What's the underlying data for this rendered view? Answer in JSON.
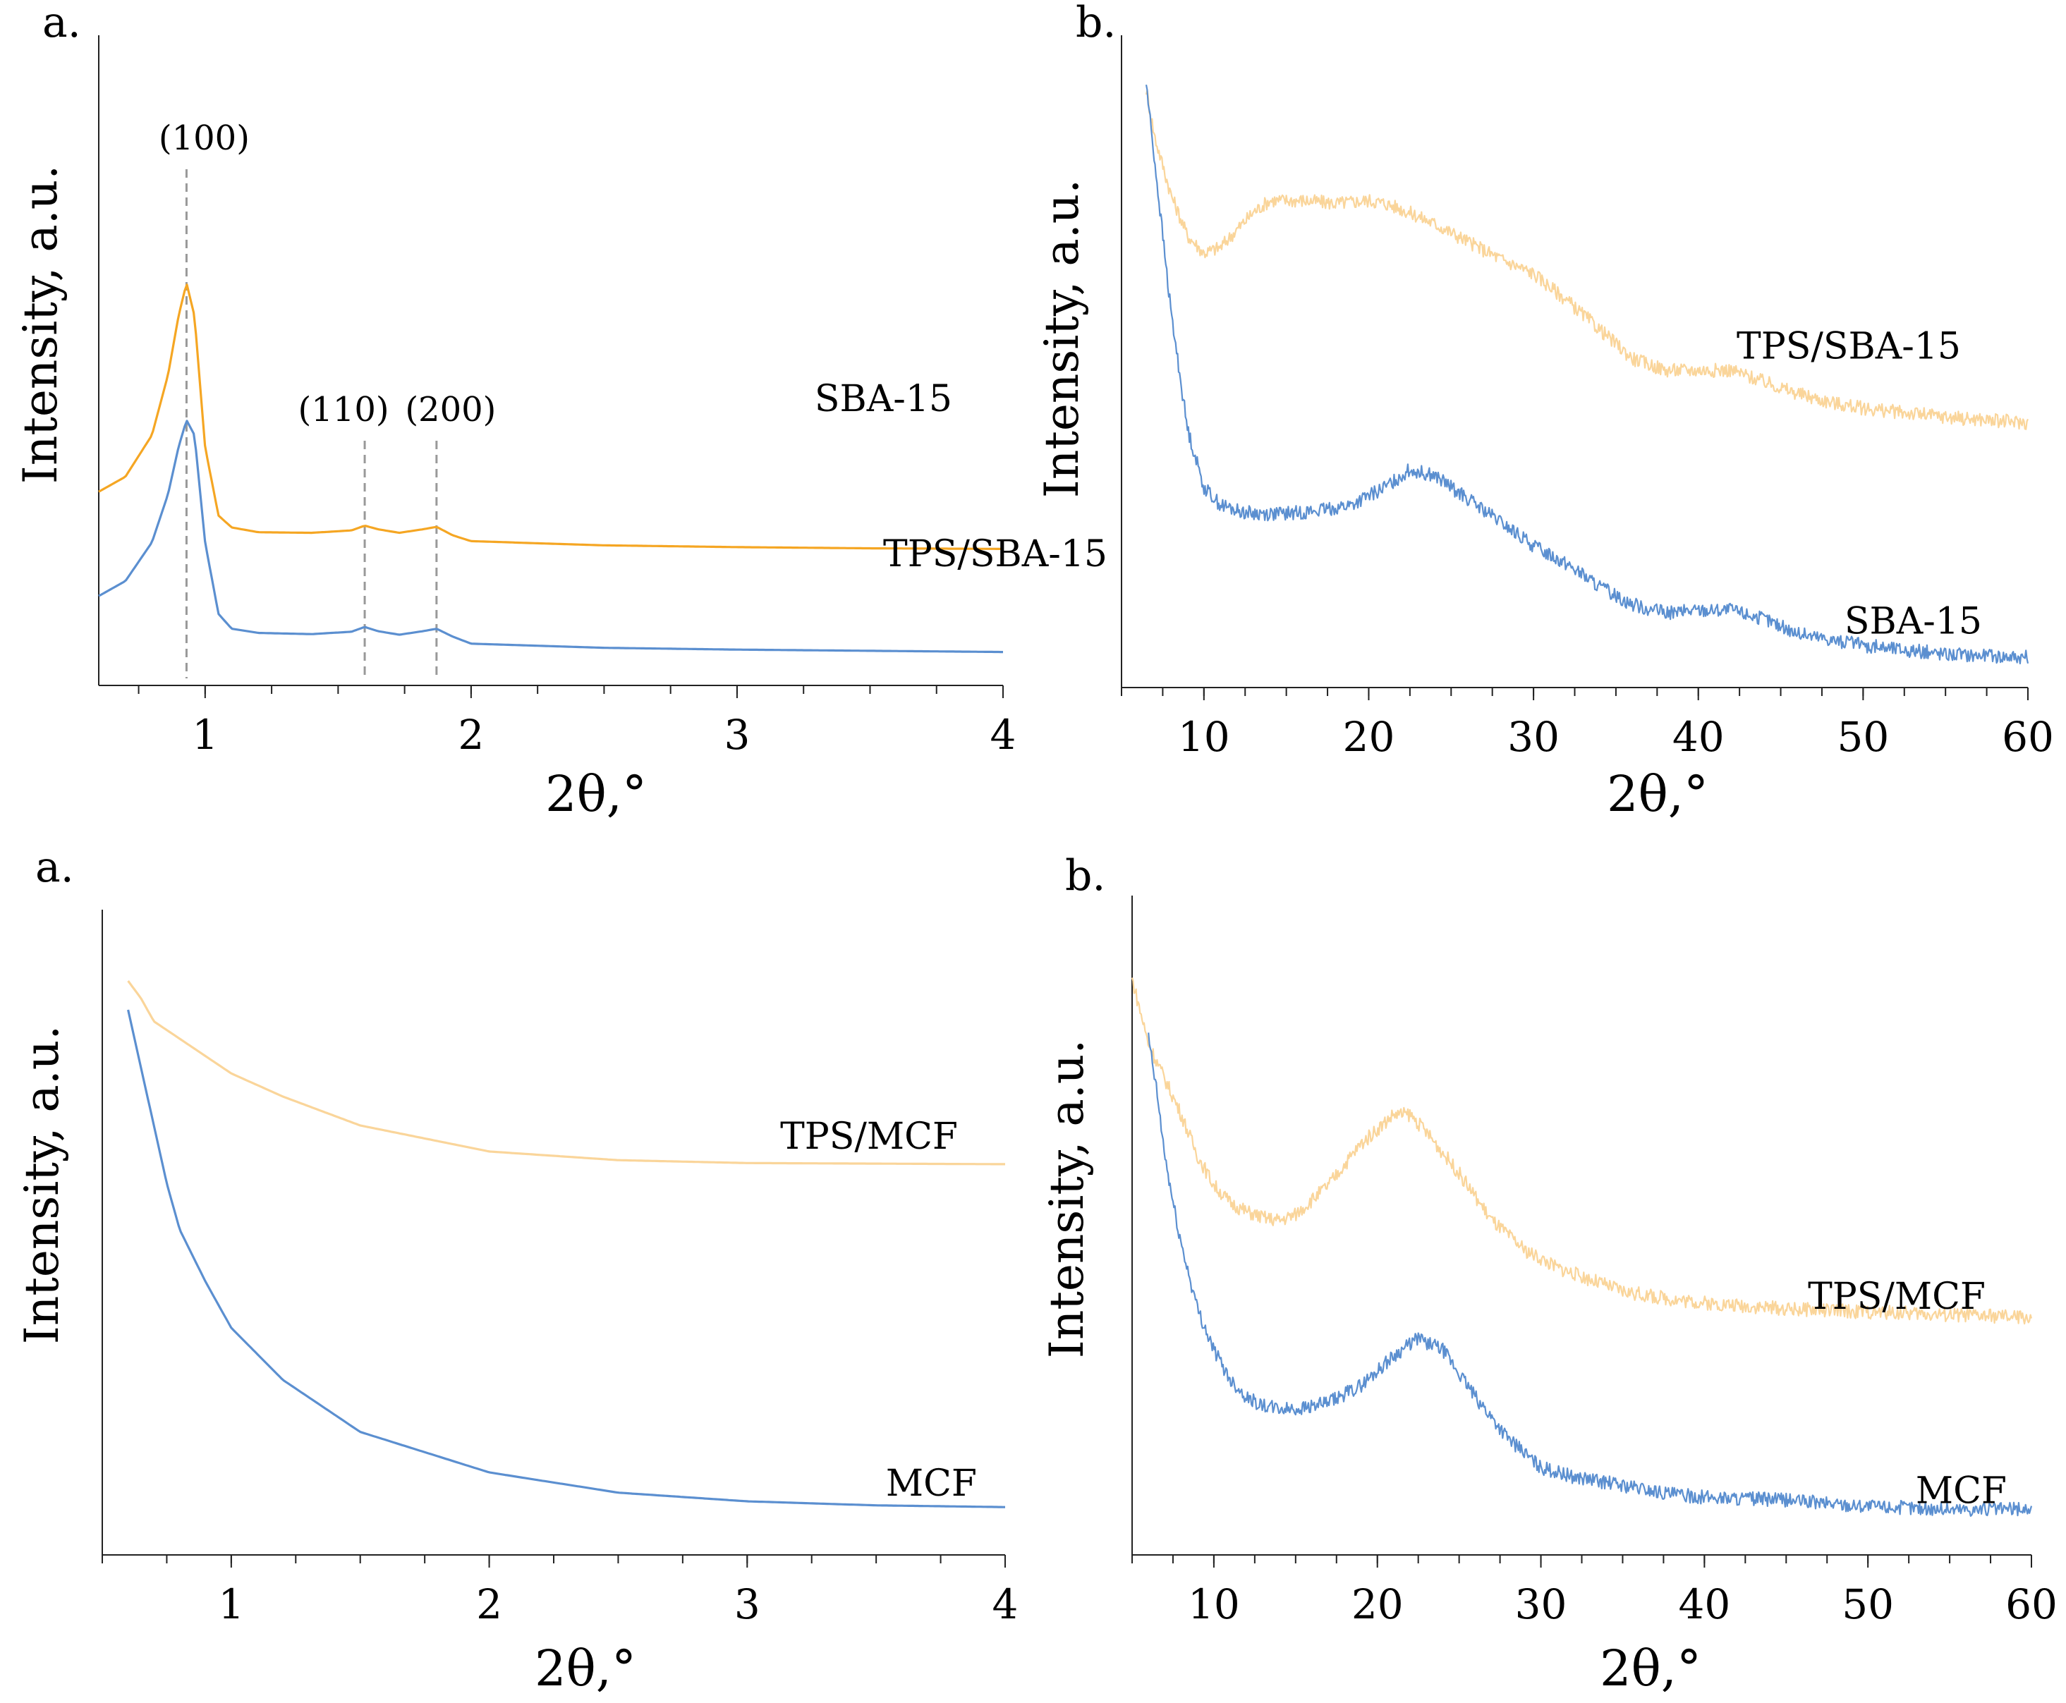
{
  "colors": {
    "sba_small_angle": "#F5A623",
    "tps_wide": "#FAD59A",
    "blue": "#5B8FD0",
    "axis": "#222222",
    "guide": "#999999"
  },
  "chart_data": [
    {
      "type": "line",
      "panel_letter": "a.",
      "xlabel": "2θ,°",
      "ylabel": "Intensity, a.u.",
      "xlim": [
        0.6,
        4
      ],
      "xticks": [
        "1",
        "2",
        "3",
        "4"
      ],
      "peak_labels": [
        {
          "text": "(100)",
          "x": 0.93
        },
        {
          "text": "(110)",
          "x": 1.6
        },
        {
          "text": "(200)",
          "x": 1.87
        }
      ],
      "series": [
        {
          "name": "TPS/SBA-15",
          "color": "#F5A623",
          "x": [
            0.6,
            0.7,
            0.8,
            0.86,
            0.9,
            0.93,
            0.96,
            1.0,
            1.05,
            1.1,
            1.2,
            1.4,
            1.55,
            1.6,
            1.65,
            1.73,
            1.82,
            1.87,
            1.93,
            2.0,
            2.5,
            3.0,
            3.5,
            4.0
          ],
          "y": [
            0.305,
            0.33,
            0.4,
            0.5,
            0.6,
            0.655,
            0.6,
            0.38,
            0.265,
            0.245,
            0.237,
            0.236,
            0.24,
            0.248,
            0.242,
            0.236,
            0.242,
            0.246,
            0.232,
            0.222,
            0.215,
            0.212,
            0.21,
            0.209
          ]
        },
        {
          "name": "SBA-15",
          "color": "#5B8FD0",
          "x": [
            0.6,
            0.7,
            0.8,
            0.86,
            0.9,
            0.93,
            0.96,
            1.0,
            1.05,
            1.1,
            1.2,
            1.4,
            1.55,
            1.6,
            1.65,
            1.73,
            1.82,
            1.87,
            1.93,
            2.0,
            2.5,
            3.0,
            3.5,
            4.0
          ],
          "y": [
            0.13,
            0.155,
            0.22,
            0.3,
            0.38,
            0.425,
            0.4,
            0.22,
            0.1,
            0.075,
            0.068,
            0.066,
            0.07,
            0.078,
            0.071,
            0.065,
            0.071,
            0.075,
            0.062,
            0.05,
            0.043,
            0.04,
            0.038,
            0.036
          ]
        }
      ]
    },
    {
      "type": "line",
      "panel_letter": "b.",
      "xlabel": "2θ,°",
      "ylabel": "Intensity, a.u.",
      "xlim": [
        5,
        60
      ],
      "xticks": [
        "10",
        "20",
        "30",
        "40",
        "50",
        "60"
      ],
      "series": [
        {
          "name": "TPS/SBA-15",
          "color": "#FAD59A",
          "x": [
            6.5,
            7,
            8,
            9,
            10,
            11,
            12,
            13,
            14,
            16,
            18,
            20,
            21,
            22,
            24,
            26,
            28,
            30,
            32,
            34,
            36,
            38,
            40,
            42,
            44,
            46,
            48,
            50,
            55,
            60
          ],
          "y": [
            0.98,
            0.9,
            0.8,
            0.73,
            0.7,
            0.71,
            0.74,
            0.77,
            0.79,
            0.79,
            0.785,
            0.79,
            0.785,
            0.775,
            0.75,
            0.72,
            0.69,
            0.665,
            0.62,
            0.57,
            0.52,
            0.5,
            0.5,
            0.5,
            0.48,
            0.46,
            0.445,
            0.435,
            0.42,
            0.41
          ]
        },
        {
          "name": "SBA-15",
          "color": "#5B8FD0",
          "x": [
            6.5,
            7,
            7.5,
            8,
            9,
            10,
            11,
            12,
            13,
            15,
            17,
            19,
            21,
            22.5,
            24,
            26,
            28,
            30,
            32,
            34,
            36,
            38,
            40,
            42,
            44,
            46,
            48,
            50,
            55,
            60
          ],
          "y": [
            0.99,
            0.86,
            0.73,
            0.6,
            0.4,
            0.3,
            0.27,
            0.26,
            0.255,
            0.255,
            0.26,
            0.27,
            0.3,
            0.33,
            0.32,
            0.28,
            0.24,
            0.2,
            0.17,
            0.13,
            0.1,
            0.085,
            0.09,
            0.09,
            0.075,
            0.05,
            0.04,
            0.03,
            0.015,
            0.01
          ]
        }
      ]
    },
    {
      "type": "line",
      "panel_letter": "a.",
      "xlabel": "2θ,°",
      "ylabel": "Intensity, a.u.",
      "xlim": [
        0.5,
        4
      ],
      "xticks": [
        "1",
        "2",
        "3",
        "4"
      ],
      "series": [
        {
          "name": "TPS/MCF",
          "color": "#FAD59A",
          "x": [
            0.6,
            0.65,
            0.7,
            0.8,
            0.9,
            1.0,
            1.2,
            1.5,
            2.0,
            2.5,
            3.0,
            3.5,
            4.0
          ],
          "y": [
            0.95,
            0.92,
            0.88,
            0.85,
            0.82,
            0.79,
            0.75,
            0.7,
            0.655,
            0.64,
            0.635,
            0.634,
            0.633
          ]
        },
        {
          "name": "MCF",
          "color": "#5B8FD0",
          "x": [
            0.6,
            0.65,
            0.7,
            0.75,
            0.8,
            0.9,
            1.0,
            1.2,
            1.5,
            2.0,
            2.5,
            3.0,
            3.5,
            4.0
          ],
          "y": [
            0.9,
            0.8,
            0.7,
            0.6,
            0.52,
            0.43,
            0.35,
            0.26,
            0.17,
            0.1,
            0.065,
            0.05,
            0.043,
            0.04
          ]
        }
      ]
    },
    {
      "type": "line",
      "panel_letter": "b.",
      "xlabel": "2θ,°",
      "ylabel": "Intensity, a.u.",
      "xlim": [
        5,
        60
      ],
      "xticks": [
        "10",
        "20",
        "30",
        "40",
        "50",
        "60"
      ],
      "series": [
        {
          "name": "TPS/MCF",
          "color": "#FAD59A",
          "x": [
            5,
            6,
            7,
            8,
            9,
            10,
            11,
            12,
            13,
            14,
            15,
            17,
            19,
            21,
            22,
            23,
            25,
            27,
            29,
            31,
            33,
            35,
            37,
            40,
            45,
            50,
            55,
            60
          ],
          "y": [
            0.93,
            0.82,
            0.76,
            0.7,
            0.63,
            0.58,
            0.55,
            0.535,
            0.525,
            0.52,
            0.53,
            0.58,
            0.65,
            0.7,
            0.7,
            0.67,
            0.6,
            0.52,
            0.47,
            0.44,
            0.42,
            0.4,
            0.39,
            0.38,
            0.37,
            0.365,
            0.36,
            0.355
          ]
        },
        {
          "name": "MCF",
          "color": "#5B8FD0",
          "x": [
            6,
            6.5,
            7,
            7.5,
            8,
            9,
            10,
            11,
            12,
            13,
            14,
            15,
            17,
            19,
            21,
            22.5,
            24,
            26,
            28,
            30,
            32,
            35,
            38,
            40,
            45,
            50,
            55,
            60
          ],
          "y": [
            0.83,
            0.74,
            0.63,
            0.55,
            0.48,
            0.37,
            0.3,
            0.25,
            0.22,
            0.205,
            0.2,
            0.2,
            0.21,
            0.24,
            0.29,
            0.32,
            0.3,
            0.22,
            0.15,
            0.1,
            0.085,
            0.07,
            0.055,
            0.05,
            0.045,
            0.035,
            0.03,
            0.03
          ]
        }
      ]
    }
  ]
}
